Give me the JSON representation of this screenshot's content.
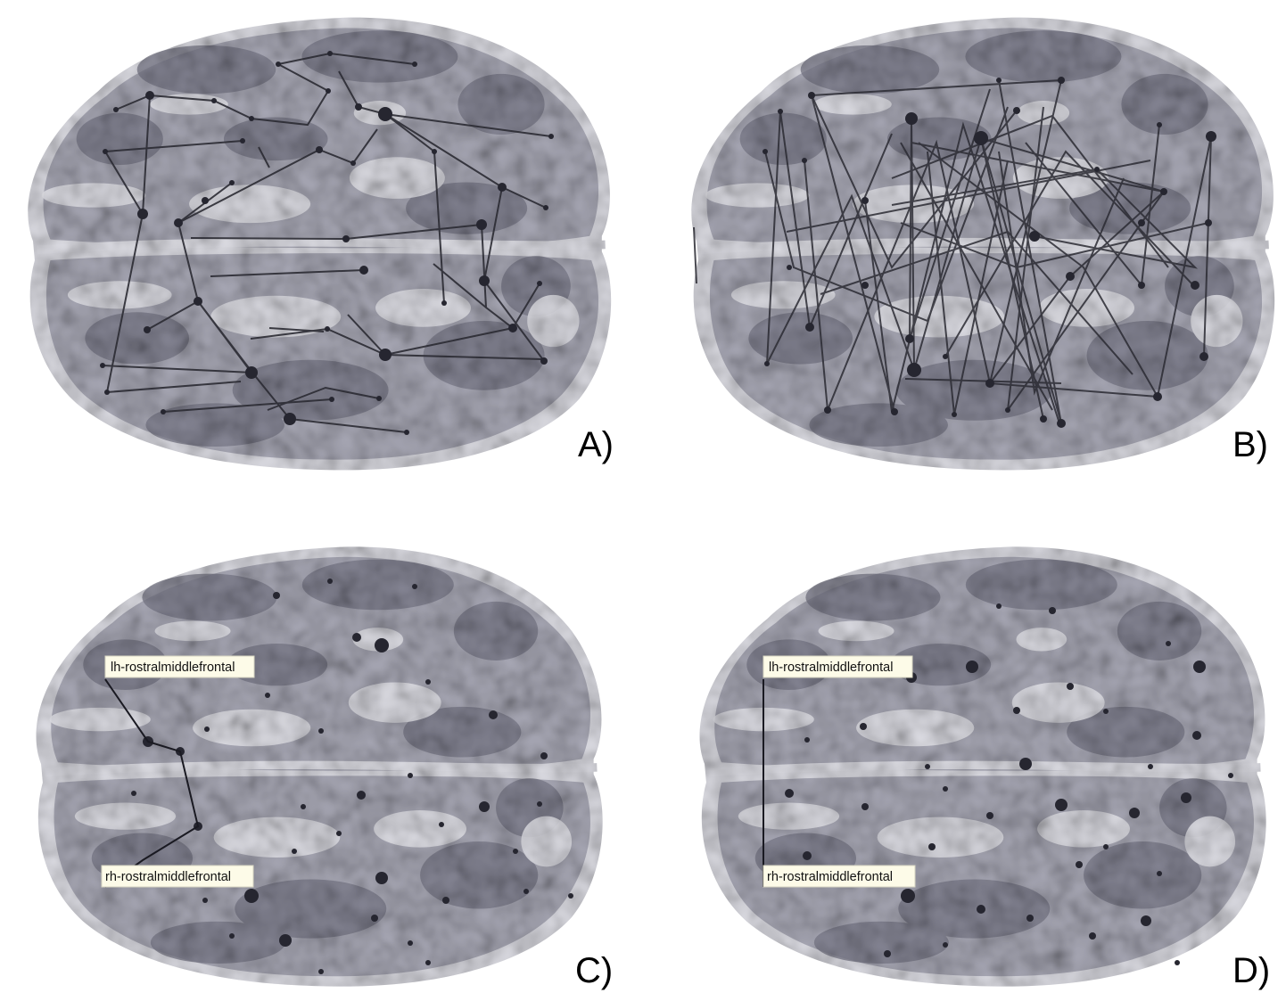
{
  "figure": {
    "panels": [
      {
        "id": "A",
        "letter": "A)"
      },
      {
        "id": "B",
        "letter": "B)"
      },
      {
        "id": "C",
        "letter": "C)"
      },
      {
        "id": "D",
        "letter": "D)"
      }
    ],
    "roi_labels": {
      "left": "lh-rostralmiddlefrontal",
      "right": "rh-rostralmiddlefrontal"
    },
    "colors": {
      "brain_light": "#d3d3dc",
      "brain_mid": "#a4a4b1",
      "brain_dark": "#6f6f7e",
      "node": "#262630",
      "edge": "#2b2b33",
      "label_bg": "#fdfbe8"
    }
  }
}
